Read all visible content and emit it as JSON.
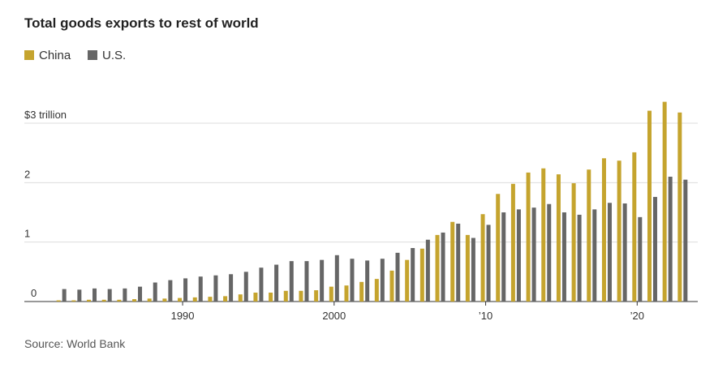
{
  "chart_data": {
    "type": "bar",
    "title": "Total goods exports to rest of world",
    "source": "Source: World Bank",
    "x": [
      1982,
      1983,
      1984,
      1985,
      1986,
      1987,
      1988,
      1989,
      1990,
      1991,
      1992,
      1993,
      1994,
      1995,
      1996,
      1997,
      1998,
      1999,
      2000,
      2001,
      2002,
      2003,
      2004,
      2005,
      2006,
      2007,
      2008,
      2009,
      2010,
      2011,
      2012,
      2013,
      2014,
      2015,
      2016,
      2017,
      2018,
      2019,
      2020,
      2021,
      2022,
      2023
    ],
    "series": [
      {
        "name": "China",
        "color": "#c5a42e",
        "values": [
          0.02,
          0.02,
          0.03,
          0.03,
          0.03,
          0.04,
          0.05,
          0.05,
          0.06,
          0.07,
          0.08,
          0.09,
          0.12,
          0.15,
          0.15,
          0.18,
          0.18,
          0.19,
          0.25,
          0.27,
          0.33,
          0.38,
          0.52,
          0.7,
          0.89,
          1.12,
          1.34,
          1.12,
          1.47,
          1.81,
          1.98,
          2.17,
          2.24,
          2.14,
          1.99,
          2.22,
          2.41,
          2.37,
          2.51,
          3.21,
          3.36,
          3.18
        ]
      },
      {
        "name": "U.S.",
        "color": "#666666",
        "values": [
          0.21,
          0.2,
          0.22,
          0.21,
          0.22,
          0.25,
          0.32,
          0.36,
          0.39,
          0.42,
          0.44,
          0.46,
          0.5,
          0.57,
          0.62,
          0.68,
          0.68,
          0.7,
          0.78,
          0.72,
          0.69,
          0.72,
          0.82,
          0.9,
          1.04,
          1.16,
          1.31,
          1.07,
          1.29,
          1.5,
          1.55,
          1.58,
          1.64,
          1.5,
          1.46,
          1.55,
          1.66,
          1.65,
          1.42,
          1.76,
          2.1,
          2.05
        ]
      }
    ],
    "xlim": [
      1981,
      2024
    ],
    "xticks": [
      1990,
      2000,
      {
        "value": 2010,
        "label": "’10"
      },
      {
        "value": 2020,
        "label": "’20"
      }
    ],
    "ylim": [
      0,
      3.6
    ],
    "yticks": [
      0,
      1,
      2,
      {
        "value": 3,
        "label": "$3 trillion"
      }
    ],
    "grid": true,
    "legend": "top-left"
  }
}
